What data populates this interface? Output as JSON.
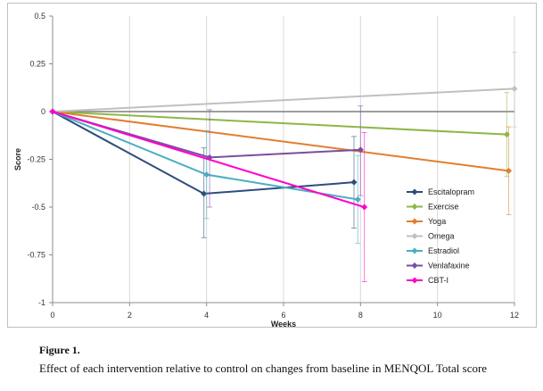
{
  "chart_data": {
    "type": "line",
    "title": "",
    "xlabel": "Weeks",
    "ylabel": "Score",
    "xlim": [
      0,
      12
    ],
    "ylim": [
      -1,
      0.5
    ],
    "x_ticks": [
      0,
      2,
      4,
      6,
      8,
      10,
      12
    ],
    "y_ticks": [
      0.5,
      0.25,
      0,
      -0.25,
      -0.5,
      -0.75,
      -1
    ],
    "y_tick_labels": [
      "0.5",
      "0.25",
      "0",
      "-0.25",
      "-0.5",
      "-0.75",
      "-1"
    ],
    "grid": "vertical",
    "legend": "right-center",
    "series": [
      {
        "name": "Escitalopram",
        "color": "#2e4d7b",
        "x": [
          0,
          4,
          8
        ],
        "y": [
          0,
          -0.43,
          -0.37
        ],
        "err_low": [
          null,
          -0.66,
          -0.61
        ],
        "err_high": [
          null,
          -0.19,
          -0.13
        ],
        "err_x": [
          null,
          3.93,
          7.83
        ]
      },
      {
        "name": "Exercise",
        "color": "#8db847",
        "x": [
          0,
          12
        ],
        "y": [
          0,
          -0.12
        ],
        "err_low": [
          null,
          -0.34
        ],
        "err_high": [
          null,
          0.1
        ],
        "err_x": [
          null,
          11.8
        ]
      },
      {
        "name": "Yoga",
        "color": "#e07f30",
        "x": [
          0,
          12
        ],
        "y": [
          0,
          -0.31
        ],
        "err_low": [
          null,
          -0.54
        ],
        "err_high": [
          null,
          -0.08
        ],
        "err_x": [
          null,
          11.85
        ]
      },
      {
        "name": "Omega",
        "color": "#c0c0c0",
        "x": [
          0,
          12
        ],
        "y": [
          0,
          0.12
        ],
        "err_low": [
          null,
          -0.08
        ],
        "err_high": [
          null,
          0.31
        ],
        "err_x": [
          null,
          12.0
        ]
      },
      {
        "name": "Estradiol",
        "color": "#4aaec0",
        "x": [
          0,
          4,
          8
        ],
        "y": [
          0,
          -0.33,
          -0.46
        ],
        "err_low": [
          null,
          -0.56,
          -0.69
        ],
        "err_high": [
          null,
          -0.1,
          -0.23
        ],
        "err_x": [
          null,
          4.0,
          7.93
        ]
      },
      {
        "name": "Venlafaxine",
        "color": "#7a4ea0",
        "x": [
          0,
          4,
          8
        ],
        "y": [
          0,
          -0.24,
          -0.2
        ],
        "err_low": [
          null,
          -0.5,
          -0.44
        ],
        "err_high": [
          null,
          0.01,
          0.03
        ],
        "err_x": [
          null,
          4.08,
          8.0
        ]
      },
      {
        "name": "CBT-I",
        "color": "#ff00cc",
        "x": [
          0,
          8
        ],
        "y": [
          0,
          -0.5
        ],
        "err_low": [
          null,
          -0.89
        ],
        "err_high": [
          null,
          -0.11
        ],
        "err_x": [
          null,
          8.1
        ]
      }
    ],
    "reference_line": {
      "y": 0,
      "color": "#7f7f7f"
    }
  },
  "caption": {
    "label": "Figure 1.",
    "text": "Effect of each intervention relative to control on changes from baseline in MENQOL Total score"
  }
}
